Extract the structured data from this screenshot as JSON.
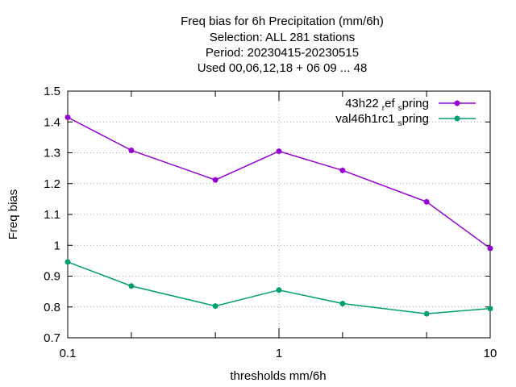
{
  "chart_data": {
    "type": "line",
    "title_lines": [
      "Freq bias  for 6h Precipitation (mm/6h)",
      "Selection: ALL    281 stations",
      "Period: 20230415-20230515",
      "Used  00,06,12,18  + 06 09 ... 48"
    ],
    "xlabel": "thresholds mm/6h",
    "ylabel": "Freq bias",
    "xscale": "log",
    "xlim": [
      0.1,
      10
    ],
    "ylim": [
      0.7,
      1.5
    ],
    "x_tick_labels": [
      {
        "value": 0.1,
        "label": "0.1"
      },
      {
        "value": 1,
        "label": "1"
      },
      {
        "value": 10,
        "label": "10"
      }
    ],
    "y_tick_labels": [
      {
        "value": 0.7,
        "label": "0.7"
      },
      {
        "value": 0.8,
        "label": "0.8"
      },
      {
        "value": 0.9,
        "label": "0.9"
      },
      {
        "value": 1.0,
        "label": "1"
      },
      {
        "value": 1.1,
        "label": "1.1"
      },
      {
        "value": 1.2,
        "label": "1.2"
      },
      {
        "value": 1.3,
        "label": "1.3"
      },
      {
        "value": 1.4,
        "label": "1.4"
      },
      {
        "value": 1.5,
        "label": "1.5"
      }
    ],
    "x_minor_ticks": [
      0.2,
      0.5,
      2,
      5
    ],
    "grid": true,
    "legend_position": "top-right",
    "series": [
      {
        "legend_base": "43h22",
        "legend_sub1": "r",
        "legend_mid": "ef",
        "legend_sub2": "s",
        "legend_tail": "pring",
        "color": "#9400d3",
        "x": [
          0.1,
          0.2,
          0.5,
          1,
          2,
          5,
          10
        ],
        "y": [
          1.415,
          1.308,
          1.212,
          1.305,
          1.243,
          1.141,
          0.99
        ]
      },
      {
        "legend_base": "val46h1rc1",
        "legend_sub1": "s",
        "legend_tail": "pring",
        "color": "#009e73",
        "x": [
          0.1,
          0.2,
          0.5,
          1,
          2,
          5,
          10
        ],
        "y": [
          0.946,
          0.868,
          0.803,
          0.855,
          0.811,
          0.778,
          0.795
        ]
      }
    ]
  }
}
